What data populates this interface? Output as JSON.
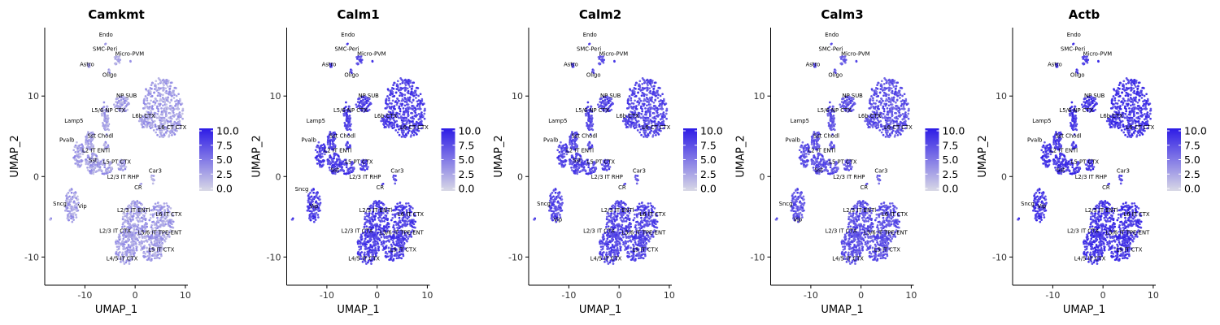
{
  "figure": {
    "background": "#ffffff"
  },
  "chart_data": [
    {
      "type": "scatter",
      "title": "Camkmt",
      "xlabel": "UMAP_1",
      "ylabel": "UMAP_2",
      "xlim": [
        -18,
        10.5
      ],
      "ylim": [
        -13.5,
        18.5
      ],
      "xticks": [
        -10,
        0,
        10
      ],
      "yticks": [
        -10,
        0,
        10
      ],
      "expression_level": 0.28,
      "colorbar": {
        "min": 0,
        "max": 10,
        "ticks": [
          "10.0",
          "7.5",
          "5.0",
          "2.5",
          "0.0"
        ],
        "low_color": "#d9d9e6",
        "high_color": "#2d1be6"
      },
      "cluster_labels": [
        {
          "label": "Endo",
          "x": -5.8,
          "y": 17.4
        },
        {
          "label": "SMC-Peri",
          "x": -6.0,
          "y": 15.6
        },
        {
          "label": "Micro-PVM",
          "x": -1.1,
          "y": 15.0
        },
        {
          "label": "Astro",
          "x": -9.6,
          "y": 13.7
        },
        {
          "label": "Oligo",
          "x": -5.1,
          "y": 12.4
        },
        {
          "label": "NP SUB",
          "x": -1.7,
          "y": 9.8
        },
        {
          "label": "L5/6 NP CTX",
          "x": -5.3,
          "y": 8.0
        },
        {
          "label": "L6b CTX",
          "x": 1.7,
          "y": 7.3
        },
        {
          "label": "Lamp5",
          "x": -12.2,
          "y": 6.7
        },
        {
          "label": "L6 CT CTX",
          "x": 7.4,
          "y": 5.9
        },
        {
          "label": "Sst Chodl",
          "x": -6.9,
          "y": 4.8
        },
        {
          "label": "Pvalb",
          "x": -13.6,
          "y": 4.3
        },
        {
          "label": "L2 IT ENTl",
          "x": -7.8,
          "y": 3.0
        },
        {
          "label": "Sst",
          "x": -8.4,
          "y": 1.8
        },
        {
          "label": "L5 PT CTX",
          "x": -3.6,
          "y": 1.6
        },
        {
          "label": "Car3",
          "x": 4.0,
          "y": 0.5
        },
        {
          "label": "L2/3 IT RHP",
          "x": -2.4,
          "y": -0.3
        },
        {
          "label": "CR",
          "x": 0.6,
          "y": -1.6
        },
        {
          "label": "Sncg",
          "x": -15.0,
          "y": -3.6
        },
        {
          "label": "Vip",
          "x": -10.5,
          "y": -3.9
        },
        {
          "label": "L2/3 IT ENTl",
          "x": -0.3,
          "y": -4.4
        },
        {
          "label": "L6 IT CTX",
          "x": 6.7,
          "y": -4.9
        },
        {
          "label": "L2/3 IT CTX",
          "x": -4.0,
          "y": -7.0
        },
        {
          "label": "L5/6 IT TPE-ENT",
          "x": 4.9,
          "y": -7.2
        },
        {
          "label": "L5 IT CTX",
          "x": 5.2,
          "y": -9.3
        },
        {
          "label": "L4/5 IT CTX",
          "x": -2.6,
          "y": -10.4
        }
      ]
    },
    {
      "type": "scatter",
      "title": "Calm1",
      "xlabel": "UMAP_1",
      "ylabel": "UMAP_2",
      "xlim": [
        -18,
        10.5
      ],
      "ylim": [
        -13.5,
        18.5
      ],
      "xticks": [
        -10,
        0,
        10
      ],
      "yticks": [
        -10,
        0,
        10
      ],
      "expression_level": 0.78,
      "colorbar": {
        "min": 0,
        "max": 10,
        "ticks": [
          "10.0",
          "7.5",
          "5.0",
          "2.5",
          "0.0"
        ],
        "low_color": "#d9d9e6",
        "high_color": "#2d1be6"
      },
      "cluster_labels": [
        {
          "label": "Endo",
          "x": -5.8,
          "y": 17.4
        },
        {
          "label": "SMC-Peri",
          "x": -6.0,
          "y": 15.6
        },
        {
          "label": "Micro-PVM",
          "x": -1.1,
          "y": 15.0
        },
        {
          "label": "Astro",
          "x": -9.6,
          "y": 13.7
        },
        {
          "label": "Oligo",
          "x": -5.1,
          "y": 12.4
        },
        {
          "label": "NP SUB",
          "x": -1.7,
          "y": 9.8
        },
        {
          "label": "L5/6 NP CTX",
          "x": -5.3,
          "y": 8.0
        },
        {
          "label": "L6b CTX",
          "x": 1.7,
          "y": 7.3
        },
        {
          "label": "Lamp5",
          "x": -12.2,
          "y": 6.7
        },
        {
          "label": "L6 CT CTX",
          "x": 7.4,
          "y": 5.9
        },
        {
          "label": "Sst Chodl",
          "x": -6.9,
          "y": 4.8
        },
        {
          "label": "Pvalb",
          "x": -13.6,
          "y": 4.3
        },
        {
          "label": "L2 IT ENTl",
          "x": -7.8,
          "y": 3.0
        },
        {
          "label": "Sst",
          "x": -8.4,
          "y": 0.6
        },
        {
          "label": "L5 PT CTX",
          "x": -3.6,
          "y": 1.6
        },
        {
          "label": "Car3",
          "x": 4.0,
          "y": 0.5
        },
        {
          "label": "L2/3 IT RHP",
          "x": -2.4,
          "y": -0.3
        },
        {
          "label": "CR",
          "x": 0.6,
          "y": -1.6
        },
        {
          "label": "Sncg",
          "x": -15.0,
          "y": -1.8
        },
        {
          "label": "Vip",
          "x": -12.6,
          "y": -3.9
        },
        {
          "label": "L2/3 IT ENTl",
          "x": -0.3,
          "y": -4.4
        },
        {
          "label": "L6 IT CTX",
          "x": 6.7,
          "y": -4.9
        },
        {
          "label": "L2/3 IT CTX",
          "x": -4.0,
          "y": -7.0
        },
        {
          "label": "L5/6 IT TPE-ENT",
          "x": 4.9,
          "y": -7.2
        },
        {
          "label": "L5 IT CTX",
          "x": 5.2,
          "y": -9.3
        },
        {
          "label": "L4/5 IT CTX",
          "x": -2.6,
          "y": -10.4
        }
      ]
    },
    {
      "type": "scatter",
      "title": "Calm2",
      "xlabel": "UMAP_1",
      "ylabel": "UMAP_2",
      "xlim": [
        -18,
        10.5
      ],
      "ylim": [
        -13.5,
        18.5
      ],
      "xticks": [
        -10,
        0,
        10
      ],
      "yticks": [
        -10,
        0,
        10
      ],
      "expression_level": 0.74,
      "colorbar": {
        "min": 0,
        "max": 10,
        "ticks": [
          "10.0",
          "7.5",
          "5.0",
          "2.5",
          "0.0"
        ],
        "low_color": "#d9d9e6",
        "high_color": "#2d1be6"
      },
      "cluster_labels": [
        {
          "label": "Endo",
          "x": -5.8,
          "y": 17.4
        },
        {
          "label": "SMC-Peri",
          "x": -6.0,
          "y": 15.6
        },
        {
          "label": "Micro-PVM",
          "x": -1.1,
          "y": 15.0
        },
        {
          "label": "Astro",
          "x": -9.6,
          "y": 13.7
        },
        {
          "label": "Oligo",
          "x": -5.1,
          "y": 12.4
        },
        {
          "label": "NP SUB",
          "x": -1.7,
          "y": 9.8
        },
        {
          "label": "L5/6 NP CTX",
          "x": -5.3,
          "y": 8.0
        },
        {
          "label": "L6b CTX",
          "x": 1.7,
          "y": 7.3
        },
        {
          "label": "Lamp5",
          "x": -12.2,
          "y": 6.7
        },
        {
          "label": "L6 CT CTX",
          "x": 7.4,
          "y": 5.9
        },
        {
          "label": "Sst Chodl",
          "x": -6.9,
          "y": 4.8
        },
        {
          "label": "Pvalb",
          "x": -13.6,
          "y": 4.3
        },
        {
          "label": "L2 IT ENTl",
          "x": -7.8,
          "y": 3.0
        },
        {
          "label": "Sst",
          "x": -8.4,
          "y": 1.8
        },
        {
          "label": "L5 PT CTX",
          "x": -3.6,
          "y": 1.6
        },
        {
          "label": "Car3",
          "x": 4.0,
          "y": 0.5
        },
        {
          "label": "L2/3 IT RHP",
          "x": -2.4,
          "y": -0.3
        },
        {
          "label": "CR",
          "x": 0.6,
          "y": -1.6
        },
        {
          "label": "Sncg",
          "x": -15.0,
          "y": -3.6
        },
        {
          "label": "Vip",
          "x": -12.2,
          "y": -5.6
        },
        {
          "label": "L2/3 IT ENTl",
          "x": -0.3,
          "y": -4.4
        },
        {
          "label": "L6 IT CTX",
          "x": 6.7,
          "y": -4.9
        },
        {
          "label": "L2/3 IT CTX",
          "x": -4.0,
          "y": -7.0
        },
        {
          "label": "L5/6 IT TPE-ENT",
          "x": 4.9,
          "y": -7.2
        },
        {
          "label": "L5 IT CTX",
          "x": 5.2,
          "y": -9.3
        },
        {
          "label": "L4/5 IT CTX",
          "x": -2.6,
          "y": -10.4
        }
      ]
    },
    {
      "type": "scatter",
      "title": "Calm3",
      "xlabel": "UMAP_1",
      "ylabel": "UMAP_2",
      "xlim": [
        -18,
        10.5
      ],
      "ylim": [
        -13.5,
        18.5
      ],
      "xticks": [
        -10,
        0,
        10
      ],
      "yticks": [
        -10,
        0,
        10
      ],
      "expression_level": 0.68,
      "colorbar": {
        "min": 0,
        "max": 10,
        "ticks": [
          "10.0",
          "7.5",
          "5.0",
          "2.5",
          "0.0"
        ],
        "low_color": "#d9d9e6",
        "high_color": "#2d1be6"
      },
      "cluster_labels": [
        {
          "label": "Endo",
          "x": -5.8,
          "y": 17.4
        },
        {
          "label": "SMC-Peri",
          "x": -6.0,
          "y": 15.6
        },
        {
          "label": "Micro-PVM",
          "x": -1.1,
          "y": 15.0
        },
        {
          "label": "Astro",
          "x": -9.6,
          "y": 13.7
        },
        {
          "label": "Oligo",
          "x": -5.1,
          "y": 12.4
        },
        {
          "label": "NP SUB",
          "x": -1.7,
          "y": 9.8
        },
        {
          "label": "L5/6 NP CTX",
          "x": -5.3,
          "y": 8.0
        },
        {
          "label": "L6b CTX",
          "x": 1.7,
          "y": 7.3
        },
        {
          "label": "Lamp5",
          "x": -12.2,
          "y": 6.7
        },
        {
          "label": "L6 CT CTX",
          "x": 7.4,
          "y": 5.9
        },
        {
          "label": "Sst Chodl",
          "x": -6.9,
          "y": 4.8
        },
        {
          "label": "Pvalb",
          "x": -13.6,
          "y": 4.3
        },
        {
          "label": "L2 IT ENTl",
          "x": -7.8,
          "y": 3.0
        },
        {
          "label": "Sst",
          "x": -8.4,
          "y": 0.6
        },
        {
          "label": "L5 PT CTX",
          "x": -3.6,
          "y": 1.6
        },
        {
          "label": "Car3",
          "x": 4.0,
          "y": 0.5
        },
        {
          "label": "L2/3 IT RHP",
          "x": -2.4,
          "y": -0.3
        },
        {
          "label": "CR",
          "x": 0.6,
          "y": -1.6
        },
        {
          "label": "Sncg",
          "x": -15.0,
          "y": -3.6
        },
        {
          "label": "Vip",
          "x": -12.6,
          "y": -5.6
        },
        {
          "label": "L2/3 IT ENTl",
          "x": -0.3,
          "y": -4.4
        },
        {
          "label": "L6 IT CTX",
          "x": 6.7,
          "y": -4.9
        },
        {
          "label": "L2/3 IT CTX",
          "x": -4.0,
          "y": -7.0
        },
        {
          "label": "L5/6 IT TPE-ENT",
          "x": 4.9,
          "y": -7.2
        },
        {
          "label": "L5 IT CTX",
          "x": 5.2,
          "y": -9.3
        },
        {
          "label": "L4/5 IT CTX",
          "x": -2.6,
          "y": -10.4
        }
      ]
    },
    {
      "type": "scatter",
      "title": "Actb",
      "xlabel": "UMAP_1",
      "ylabel": "UMAP_2",
      "xlim": [
        -18,
        10.5
      ],
      "ylim": [
        -13.5,
        18.5
      ],
      "xticks": [
        -10,
        0,
        10
      ],
      "yticks": [
        -10,
        0,
        10
      ],
      "expression_level": 0.82,
      "colorbar": {
        "min": 0,
        "max": 10,
        "ticks": [
          "10.0",
          "7.5",
          "5.0",
          "2.5",
          "0.0"
        ],
        "low_color": "#d9d9e6",
        "high_color": "#2d1be6"
      },
      "cluster_labels": [
        {
          "label": "Endo",
          "x": -5.8,
          "y": 17.4
        },
        {
          "label": "SMC-Peri",
          "x": -6.0,
          "y": 15.6
        },
        {
          "label": "Micro-PVM",
          "x": -1.1,
          "y": 15.0
        },
        {
          "label": "Astro",
          "x": -9.6,
          "y": 13.7
        },
        {
          "label": "Oligo",
          "x": -5.1,
          "y": 12.4
        },
        {
          "label": "NP SUB",
          "x": -1.7,
          "y": 9.8
        },
        {
          "label": "L5/6 NP CTX",
          "x": -5.3,
          "y": 8.0
        },
        {
          "label": "L6b CTX",
          "x": 1.7,
          "y": 7.3
        },
        {
          "label": "Lamp5",
          "x": -12.2,
          "y": 6.7
        },
        {
          "label": "L6 CT CTX",
          "x": 7.4,
          "y": 5.9
        },
        {
          "label": "Sst Chodl",
          "x": -6.9,
          "y": 4.8
        },
        {
          "label": "Pvalb",
          "x": -13.6,
          "y": 4.3
        },
        {
          "label": "L2 IT ENTl",
          "x": -7.8,
          "y": 3.0
        },
        {
          "label": "Sst",
          "x": -8.4,
          "y": 0.6
        },
        {
          "label": "L5 PT CTX",
          "x": -3.6,
          "y": 1.6
        },
        {
          "label": "Car3",
          "x": 4.0,
          "y": 0.5
        },
        {
          "label": "L2/3 IT RHP",
          "x": -2.4,
          "y": -0.3
        },
        {
          "label": "CR",
          "x": 0.6,
          "y": -1.6
        },
        {
          "label": "Sncg",
          "x": -15.0,
          "y": -3.6
        },
        {
          "label": "Vip",
          "x": -12.2,
          "y": -3.9
        },
        {
          "label": "L2/3 IT ENTl",
          "x": -0.3,
          "y": -4.4
        },
        {
          "label": "L6 IT CTX",
          "x": 6.7,
          "y": -4.9
        },
        {
          "label": "L2/3 IT CTX",
          "x": -4.0,
          "y": -7.0
        },
        {
          "label": "L5/6 IT TPE-ENT",
          "x": 4.9,
          "y": -7.2
        },
        {
          "label": "L5 IT CTX",
          "x": 5.2,
          "y": -9.3
        },
        {
          "label": "L4/5 IT CTX",
          "x": -2.6,
          "y": -10.4
        }
      ]
    }
  ]
}
